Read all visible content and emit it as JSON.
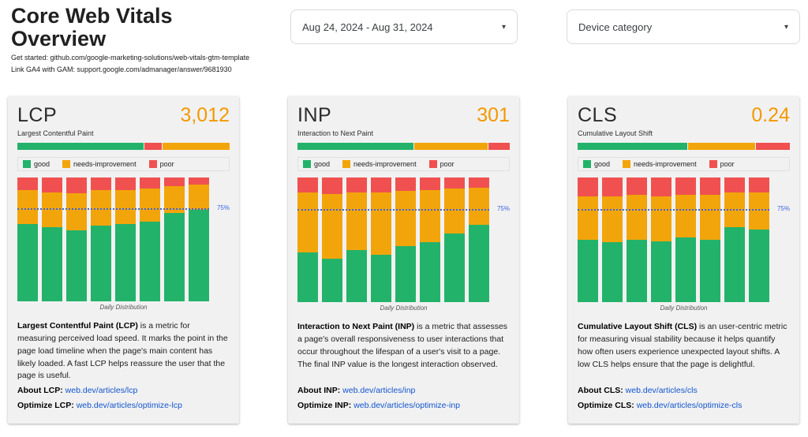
{
  "page": {
    "title": "Core Web Vitals Overview",
    "note1": "Get started: github.com/google-marketing-solutions/web-vitals-gtm-template",
    "note2": "Link GA4 with GAM: support.google.com/admanager/answer/9681930"
  },
  "controls": {
    "date_range": "Aug 24, 2024 - Aug 31, 2024",
    "device_category": "Device category"
  },
  "colors": {
    "good": "#23b26a",
    "needs": "#f2a50a",
    "poor": "#f05150",
    "value_accent": "#f29900",
    "threshold_line": "#3e63dd",
    "link": "#1155cc"
  },
  "legend": [
    {
      "key": "good",
      "label": "good"
    },
    {
      "key": "needs",
      "label": "needs-improvement"
    },
    {
      "key": "poor",
      "label": "poor"
    }
  ],
  "threshold_label": "75%",
  "axis_label": "Daily Distribution",
  "cards": [
    {
      "metric": "LCP",
      "value": "3,012",
      "subtitle": "Largest Contentful Paint",
      "summary": [
        {
          "key": "good",
          "pct": 60
        },
        {
          "key": "poor",
          "pct": 8
        },
        {
          "key": "needs",
          "pct": 32
        }
      ],
      "desc_bold": "Largest Contentful Paint (LCP)",
      "desc_text": " is a metric for measuring perceived load speed. It marks the point in the page load timeline when the page's main content has likely loaded. A fast LCP helps reassure the user that the page is useful.",
      "about_label": "About LCP:",
      "about_link": "web.dev/articles/lcp",
      "optimize_label": "Optimize LCP:",
      "optimize_link": "web.dev/articles/optimize-lcp"
    },
    {
      "metric": "INP",
      "value": "301",
      "subtitle": "Interaction to Next Paint",
      "summary": [
        {
          "key": "good",
          "pct": 55
        },
        {
          "key": "needs",
          "pct": 35
        },
        {
          "key": "poor",
          "pct": 10
        }
      ],
      "desc_bold": "Interaction to Next Paint (INP)",
      "desc_text": " is a metric that assesses a page's overall responsiveness to user interactions that occur throughout the lifespan of a user's visit to a page. The final INP value is the longest interaction observed.",
      "about_label": "About INP:",
      "about_link": "web.dev/articles/inp",
      "optimize_label": "Optimize INP:",
      "optimize_link": "web.dev/articles/optimize-inp"
    },
    {
      "metric": "CLS",
      "value": "0.24",
      "subtitle": "Cumulative Layout Shift",
      "summary": [
        {
          "key": "good",
          "pct": 52
        },
        {
          "key": "needs",
          "pct": 32
        },
        {
          "key": "poor",
          "pct": 16
        }
      ],
      "desc_bold": "Cumulative Layout Shift (CLS)",
      "desc_text": " is an user-centric metric for measuring visual stability because it helps quantify how often users experience unexpected layout shifts. A low CLS helps ensure that the page is delightful.",
      "about_label": "About CLS:",
      "about_link": "web.dev/articles/cls",
      "optimize_label": "Optimize CLS:",
      "optimize_link": "web.dev/articles/optimize-cls"
    }
  ],
  "chart_data": [
    {
      "type": "bar",
      "metric": "LCP",
      "stacked": "100%",
      "title": "Daily Distribution",
      "xlabel": "Daily Distribution",
      "legend_entries": [
        "good",
        "needs-improvement",
        "poor"
      ],
      "series_order": [
        "good",
        "needs",
        "poor"
      ],
      "threshold_pct": 75,
      "days": [
        [
          62,
          28,
          10
        ],
        [
          60,
          28,
          12
        ],
        [
          57,
          30,
          13
        ],
        [
          61,
          29,
          10
        ],
        [
          62,
          28,
          10
        ],
        [
          64,
          27,
          9
        ],
        [
          71,
          22,
          7
        ],
        [
          74,
          20,
          6
        ]
      ]
    },
    {
      "type": "bar",
      "metric": "INP",
      "stacked": "100%",
      "title": "Daily Distribution",
      "xlabel": "Daily Distribution",
      "legend_entries": [
        "good",
        "needs-improvement",
        "poor"
      ],
      "series_order": [
        "good",
        "needs",
        "poor"
      ],
      "threshold_pct": 75,
      "days": [
        [
          40,
          48,
          12
        ],
        [
          35,
          52,
          13
        ],
        [
          42,
          46,
          12
        ],
        [
          38,
          50,
          12
        ],
        [
          45,
          44,
          11
        ],
        [
          48,
          42,
          10
        ],
        [
          55,
          36,
          9
        ],
        [
          62,
          30,
          8
        ]
      ]
    },
    {
      "type": "bar",
      "metric": "CLS",
      "stacked": "100%",
      "title": "Daily Distribution",
      "xlabel": "Daily Distribution",
      "legend_entries": [
        "good",
        "needs-improvement",
        "poor"
      ],
      "series_order": [
        "good",
        "needs",
        "poor"
      ],
      "threshold_pct": 75,
      "days": [
        [
          50,
          35,
          15
        ],
        [
          48,
          37,
          15
        ],
        [
          50,
          36,
          14
        ],
        [
          49,
          36,
          15
        ],
        [
          52,
          34,
          14
        ],
        [
          50,
          36,
          14
        ],
        [
          60,
          28,
          12
        ],
        [
          58,
          30,
          12
        ]
      ]
    }
  ]
}
